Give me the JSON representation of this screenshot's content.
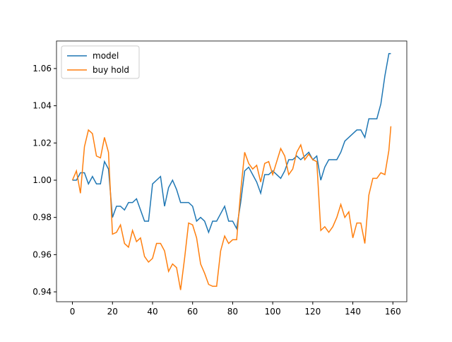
{
  "chart_data": {
    "type": "line",
    "x": [
      0,
      2,
      4,
      6,
      8,
      10,
      12,
      14,
      16,
      18,
      20,
      22,
      24,
      26,
      28,
      30,
      32,
      34,
      36,
      38,
      40,
      42,
      44,
      46,
      48,
      50,
      52,
      54,
      56,
      58,
      60,
      62,
      64,
      66,
      68,
      70,
      72,
      74,
      76,
      78,
      80,
      82,
      84,
      86,
      88,
      90,
      92,
      94,
      96,
      98,
      100,
      102,
      104,
      106,
      108,
      110,
      112,
      114,
      116,
      118,
      120,
      122,
      124,
      126,
      128,
      130,
      132,
      134,
      136,
      138,
      140,
      142,
      144,
      146,
      148,
      150,
      152,
      154,
      156,
      158,
      159
    ],
    "series": [
      {
        "name": "model",
        "color": "#1f77b4",
        "values": [
          1.0,
          1.0,
          1.004,
          1.004,
          0.998,
          1.002,
          0.998,
          0.998,
          1.01,
          1.006,
          0.98,
          0.986,
          0.986,
          0.984,
          0.988,
          0.988,
          0.99,
          0.984,
          0.978,
          0.978,
          0.998,
          1.0,
          1.002,
          0.986,
          0.996,
          1.0,
          0.995,
          0.988,
          0.988,
          0.988,
          0.986,
          0.978,
          0.98,
          0.978,
          0.972,
          0.978,
          0.978,
          0.982,
          0.986,
          0.978,
          0.978,
          0.974,
          0.988,
          1.005,
          1.007,
          1.003,
          0.999,
          0.993,
          1.003,
          1.003,
          1.005,
          1.003,
          1.001,
          1.005,
          1.011,
          1.011,
          1.013,
          1.011,
          1.013,
          1.015,
          1.011,
          1.013,
          1.0,
          1.007,
          1.011,
          1.011,
          1.011,
          1.015,
          1.021,
          1.023,
          1.025,
          1.027,
          1.027,
          1.023,
          1.033,
          1.033,
          1.033,
          1.041,
          1.056,
          1.068,
          1.068
        ]
      },
      {
        "name": "buy hold",
        "color": "#ff7f0e",
        "values": [
          1.0,
          1.005,
          0.993,
          1.018,
          1.027,
          1.025,
          1.013,
          1.012,
          1.023,
          1.015,
          0.971,
          0.972,
          0.976,
          0.966,
          0.964,
          0.973,
          0.967,
          0.969,
          0.959,
          0.956,
          0.958,
          0.966,
          0.966,
          0.962,
          0.951,
          0.955,
          0.953,
          0.941,
          0.958,
          0.977,
          0.976,
          0.969,
          0.955,
          0.95,
          0.944,
          0.943,
          0.943,
          0.962,
          0.97,
          0.966,
          0.968,
          0.968,
          0.994,
          1.015,
          1.009,
          1.006,
          1.008,
          0.999,
          1.009,
          1.01,
          1.003,
          1.01,
          1.017,
          1.013,
          1.003,
          1.006,
          1.015,
          1.019,
          1.011,
          1.014,
          1.011,
          1.01,
          0.973,
          0.975,
          0.972,
          0.975,
          0.98,
          0.987,
          0.98,
          0.983,
          0.969,
          0.977,
          0.977,
          0.966,
          0.992,
          1.001,
          1.001,
          1.004,
          1.003,
          1.016,
          1.029
        ]
      }
    ],
    "xlim": [
      -7.95,
      166.95
    ],
    "xticks": [
      0,
      20,
      40,
      60,
      80,
      100,
      120,
      140,
      160
    ],
    "ylim": [
      0.9347,
      1.0748
    ],
    "yticks": [
      0.94,
      0.96,
      0.98,
      {
        "value": 1.0,
        "label": "1.00"
      },
      1.02,
      1.04,
      1.06
    ],
    "grid": false,
    "legend": "upper left"
  }
}
